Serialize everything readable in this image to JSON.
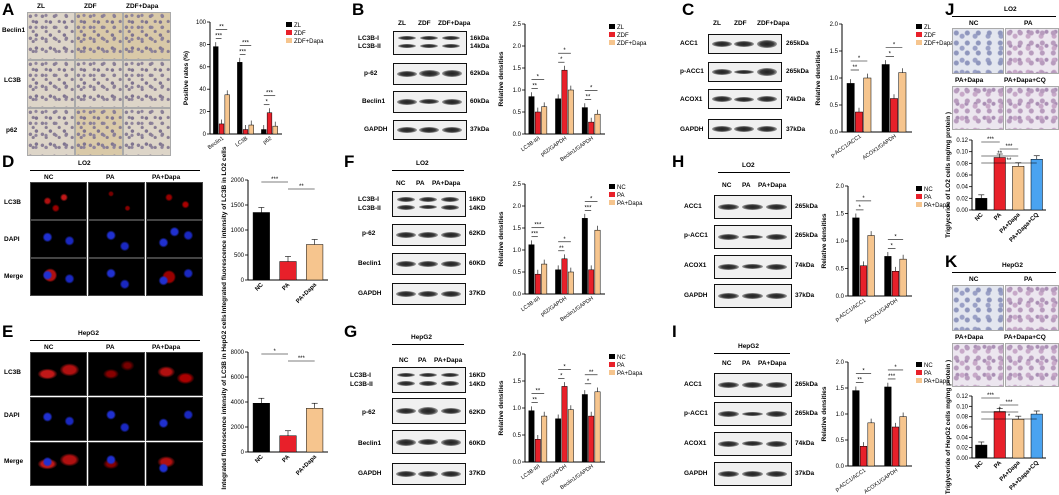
{
  "panels": {
    "A": {
      "label": "A",
      "groups": [
        "ZL",
        "ZDF",
        "ZDF+Dapa"
      ],
      "rows": [
        "Beclin1",
        "LC3B",
        "p62"
      ],
      "chart_ylabel": "Positive rates (%)",
      "chart_legend": [
        "ZL",
        "ZDF",
        "ZDF+Dapa"
      ]
    },
    "B": {
      "label": "B",
      "groups": [
        "ZL",
        "ZDF",
        "ZDF+Dapa"
      ],
      "bands": [
        "LC3B-I",
        "LC3B-II",
        "p-62",
        "Beclin1",
        "GAPDH"
      ],
      "sizes": [
        "16kDa",
        "14kDa",
        "62kDa",
        "60kDa",
        "37kDa"
      ],
      "legend": [
        "ZL",
        "ZDF",
        "ZDF+Dapa"
      ],
      "ylabel": "Relative densities"
    },
    "C": {
      "label": "C",
      "groups": [
        "ZL",
        "ZDF",
        "ZDF+Dapa"
      ],
      "bands": [
        "ACC1",
        "p-ACC1",
        "ACOX1",
        "GAPDH"
      ],
      "sizes": [
        "265kDa",
        "265kDa",
        "74kDa",
        "37kDa"
      ],
      "legend": [
        "ZL",
        "ZDF",
        "ZDF+Dapa"
      ],
      "ylabel": "Relative densities"
    },
    "D": {
      "label": "D",
      "cell": "LO2",
      "groups": [
        "NC",
        "PA",
        "PA+Dapa"
      ],
      "rows": [
        "LC3B",
        "DAPI",
        "Merge"
      ],
      "ylabel": "Integrated fluorescence intensity of LC3B in LO2 cells"
    },
    "E": {
      "label": "E",
      "cell": "HepG2",
      "groups": [
        "NC",
        "PA",
        "PA+Dapa"
      ],
      "rows": [
        "LC3B",
        "DAPI",
        "Merge"
      ],
      "ylabel": "Integrated fluorescence intensity of LC3B in HepG2 cells"
    },
    "F": {
      "label": "F",
      "cell": "LO2",
      "groups": [
        "NC",
        "PA",
        "PA+Dapa"
      ],
      "bands": [
        "LC3B-I",
        "LC3B-II",
        "p-62",
        "Beclin1",
        "GAPDH"
      ],
      "sizes": [
        "16KD",
        "14KD",
        "62KD",
        "60KD",
        "37KD"
      ],
      "legend": [
        "NC",
        "PA",
        "PA+Dapa"
      ],
      "ylabel": "Relative densities"
    },
    "G": {
      "label": "G",
      "cell": "HepG2",
      "groups": [
        "NC",
        "PA",
        "PA+Dapa"
      ],
      "bands": [
        "LC3B-I",
        "LC3B-II",
        "p-62",
        "Beclin1",
        "GAPDH"
      ],
      "sizes": [
        "16KD",
        "14KD",
        "62KD",
        "60KD",
        "37KD"
      ],
      "legend": [
        "NC",
        "PA",
        "PA+Dapa"
      ],
      "ylabel": "Relative densities"
    },
    "H": {
      "label": "H",
      "cell": "LO2",
      "groups": [
        "NC",
        "PA",
        "PA+Dapa"
      ],
      "bands": [
        "ACC1",
        "p-ACC1",
        "ACOX1",
        "GAPDH"
      ],
      "sizes": [
        "265kDa",
        "265kDa",
        "74kDa",
        "37kDa"
      ],
      "legend": [
        "NC",
        "PA",
        "PA+Dapa"
      ],
      "ylabel": "Relative densities"
    },
    "I": {
      "label": "I",
      "cell": "HepG2",
      "groups": [
        "NC",
        "PA",
        "PA+Dapa"
      ],
      "bands": [
        "ACC1",
        "p-ACC1",
        "ACOX1",
        "GAPDH"
      ],
      "sizes": [
        "265kDa",
        "265kDa",
        "74kDa",
        "37kDa"
      ],
      "legend": [
        "NC",
        "PA",
        "PA+Dapa"
      ],
      "ylabel": "Relative densities"
    },
    "J": {
      "label": "J",
      "cell": "LO2",
      "tiles": [
        "NC",
        "PA",
        "PA+Dapa",
        "PA+Dapa+CQ"
      ],
      "ylabel": "Triglyceride of LO2 cells mg/mg protein )"
    },
    "K": {
      "label": "K",
      "cell": "HepG2",
      "tiles": [
        "NC",
        "PA",
        "PA+Dapa",
        "PA+Dapa+CQ"
      ],
      "ylabel": "Triglyceride of HepG2 cells mg/mg protein )"
    }
  },
  "colors": {
    "black": "#000000",
    "red": "#e8202a",
    "peach": "#f6c58e",
    "blue": "#4aa3f0"
  },
  "chart_data": [
    {
      "id": "A",
      "type": "bar",
      "categories": [
        "Beclin1",
        "LC3B",
        "p62"
      ],
      "ylabel": "Positive rates (%)",
      "ylim": [
        0,
        100
      ],
      "yticks": [
        0,
        20,
        40,
        60,
        80,
        100
      ],
      "series": [
        {
          "name": "ZL",
          "values": [
            78,
            64,
            4
          ]
        },
        {
          "name": "ZDF",
          "values": [
            9,
            4,
            19
          ]
        },
        {
          "name": "ZDF+Dapa",
          "values": [
            35,
            8,
            7
          ]
        }
      ],
      "annotations": [
        "***",
        "**",
        "***",
        "***",
        "*",
        "***",
        "**"
      ]
    },
    {
      "id": "B",
      "type": "bar",
      "categories": [
        "LC3B-II/I",
        "p62/GAPDH",
        "Beclin1/GAPDH"
      ],
      "ylabel": "Relative densities",
      "ylim": [
        0,
        2.5
      ],
      "yticks": [
        0.0,
        0.5,
        1.0,
        1.5,
        2.0,
        2.5
      ],
      "series": [
        {
          "name": "ZL",
          "values": [
            0.85,
            0.8,
            0.6
          ]
        },
        {
          "name": "ZDF",
          "values": [
            0.5,
            1.45,
            0.27
          ]
        },
        {
          "name": "ZDF+Dapa",
          "values": [
            0.62,
            1.0,
            0.45
          ]
        }
      ],
      "annotations": [
        "**",
        "*",
        "*",
        "*",
        "**",
        "*"
      ]
    },
    {
      "id": "C",
      "type": "bar",
      "categories": [
        "p-ACC1/ACC1",
        "ACOX1/GAPDH"
      ],
      "ylabel": "Relative densities",
      "ylim": [
        0,
        2.0
      ],
      "yticks": [
        0.0,
        0.5,
        1.0,
        1.5,
        2.0
      ],
      "series": [
        {
          "name": "ZL",
          "values": [
            0.9,
            1.25
          ]
        },
        {
          "name": "ZDF",
          "values": [
            0.37,
            0.62
          ]
        },
        {
          "name": "ZDF+Dapa",
          "values": [
            1.0,
            1.1
          ]
        }
      ],
      "annotations": [
        "**",
        "*",
        "*",
        "*"
      ]
    },
    {
      "id": "D",
      "type": "bar",
      "categories": [
        "NC",
        "PA",
        "PA+Dapa"
      ],
      "ylabel": "Integrated fluorescence intensity of LC3B in LO2 cells",
      "ylim": [
        0,
        2000
      ],
      "yticks": [
        0,
        500,
        1000,
        1500,
        2000
      ],
      "values": [
        1350,
        370,
        710
      ],
      "colors": [
        "#000000",
        "#e8202a",
        "#f6c58e"
      ],
      "annotations": [
        "***",
        "**"
      ]
    },
    {
      "id": "E",
      "type": "bar",
      "categories": [
        "NC",
        "PA",
        "PA+Dapa"
      ],
      "ylabel": "Integrated fluorescence intensity of LC3B in HepG2 cells",
      "ylim": [
        0,
        8000
      ],
      "yticks": [
        0,
        2000,
        4000,
        6000,
        8000
      ],
      "values": [
        3900,
        1300,
        3500
      ],
      "colors": [
        "#000000",
        "#e8202a",
        "#f6c58e"
      ],
      "annotations": [
        "*",
        "***"
      ]
    },
    {
      "id": "F",
      "type": "bar",
      "categories": [
        "LC3B-II/I",
        "p62/GAPDH",
        "Beclin1/GAPDH"
      ],
      "ylabel": "Relative densities",
      "ylim": [
        0,
        2.5
      ],
      "yticks": [
        0.0,
        0.5,
        1.0,
        1.5,
        2.0,
        2.5
      ],
      "series": [
        {
          "name": "NC",
          "values": [
            1.12,
            0.55,
            1.72
          ]
        },
        {
          "name": "PA",
          "values": [
            0.45,
            0.8,
            0.55
          ]
        },
        {
          "name": "PA+Dapa",
          "values": [
            0.68,
            0.5,
            1.45
          ]
        }
      ],
      "annotations": [
        "***",
        "***",
        "**",
        "*",
        "***",
        "*"
      ]
    },
    {
      "id": "G",
      "type": "bar",
      "categories": [
        "LC3B-II/I",
        "p62/GAPDH",
        "Beclin1/GAPDH"
      ],
      "ylabel": "Relative densities",
      "ylim": [
        0,
        2.0
      ],
      "yticks": [
        0.0,
        0.5,
        1.0,
        1.5,
        2.0
      ],
      "series": [
        {
          "name": "NC",
          "values": [
            0.95,
            0.8,
            1.25
          ]
        },
        {
          "name": "PA",
          "values": [
            0.42,
            1.4,
            0.85
          ]
        },
        {
          "name": "PA+Dapa",
          "values": [
            0.85,
            0.97,
            1.3
          ]
        }
      ],
      "annotations": [
        "**",
        "**",
        "*",
        "*",
        "*",
        "**"
      ]
    },
    {
      "id": "H",
      "type": "bar",
      "categories": [
        "p-ACC1/ACC1",
        "ACOX1/GAPDH"
      ],
      "ylabel": "Relative densities",
      "ylim": [
        0,
        2.0
      ],
      "yticks": [
        0.0,
        0.5,
        1.0,
        1.5,
        2.0
      ],
      "series": [
        {
          "name": "NC",
          "values": [
            1.42,
            0.72
          ]
        },
        {
          "name": "PA",
          "values": [
            0.55,
            0.45
          ]
        },
        {
          "name": "PA+Dapa",
          "values": [
            1.1,
            0.67
          ]
        }
      ],
      "annotations": [
        "*",
        "*",
        "*",
        "*"
      ]
    },
    {
      "id": "I",
      "type": "bar",
      "categories": [
        "p-ACC1/ACC1",
        "ACOX1/GAPDH"
      ],
      "ylabel": "Relative densities",
      "ylim": [
        0,
        2.0
      ],
      "yticks": [
        0.0,
        0.5,
        1.0,
        1.5,
        2.0
      ],
      "series": [
        {
          "name": "NC",
          "values": [
            1.45,
            1.52
          ]
        },
        {
          "name": "PA",
          "values": [
            0.38,
            0.75
          ]
        },
        {
          "name": "PA+Dapa",
          "values": [
            0.83,
            0.95
          ]
        }
      ],
      "annotations": [
        "**",
        "*",
        "***",
        "*"
      ]
    },
    {
      "id": "J",
      "type": "bar",
      "categories": [
        "NC",
        "PA",
        "PA+Dapa",
        "PA+Dapa+CQ"
      ],
      "ylabel": "Triglyceride of LO2 cells mg/mg protein )",
      "ylim": [
        0,
        0.12
      ],
      "yticks": [
        0.0,
        0.02,
        0.04,
        0.06,
        0.08,
        0.1,
        0.12
      ],
      "values": [
        0.02,
        0.09,
        0.075,
        0.087
      ],
      "colors": [
        "#000000",
        "#e8202a",
        "#f6c58e",
        "#4aa3f0"
      ],
      "annotations": [
        "***",
        "***",
        "**",
        "**"
      ]
    },
    {
      "id": "K",
      "type": "bar",
      "categories": [
        "NC",
        "PA",
        "PA+Dapa",
        "PA+Dapa+CQ"
      ],
      "ylabel": "Triglyceride of HepG2 cells mg/mg protein )",
      "ylim": [
        0,
        0.12
      ],
      "yticks": [
        0.0,
        0.02,
        0.04,
        0.06,
        0.08,
        0.1,
        0.12
      ],
      "values": [
        0.025,
        0.09,
        0.075,
        0.085
      ],
      "colors": [
        "#000000",
        "#e8202a",
        "#f6c58e",
        "#4aa3f0"
      ],
      "annotations": [
        "***",
        "***",
        "*",
        "*"
      ]
    }
  ]
}
